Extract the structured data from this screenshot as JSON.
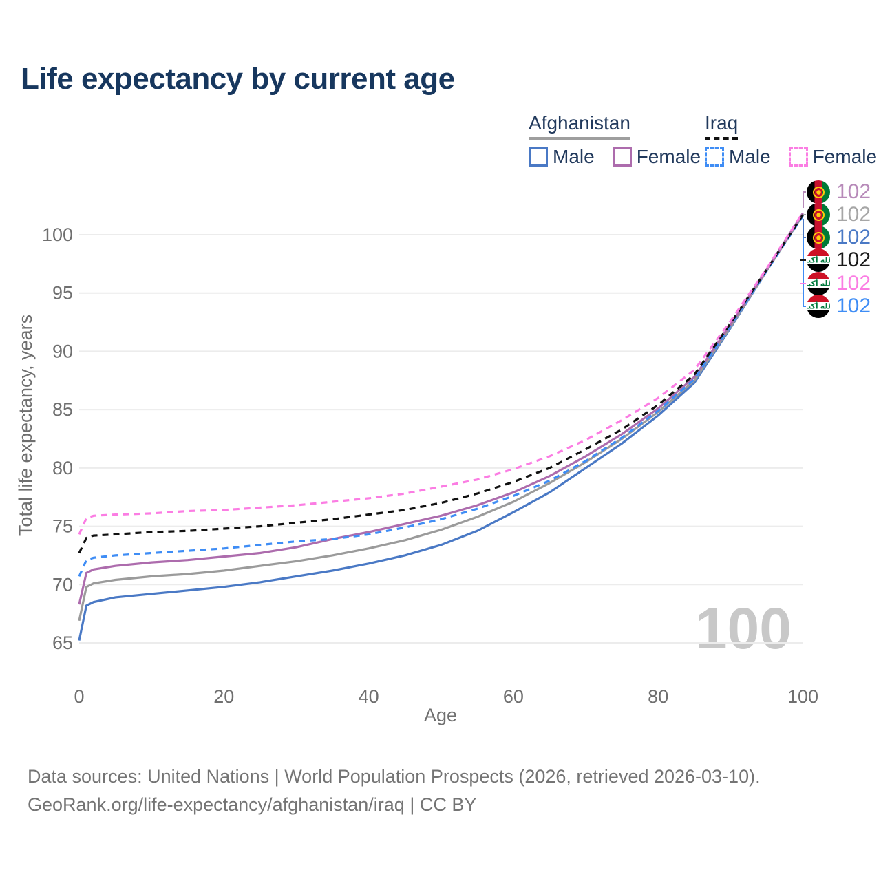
{
  "title": "Life expectancy by current age",
  "watermark": "100",
  "legend": {
    "groups": [
      {
        "label": "Afghanistan",
        "underline_style": "solid-gray",
        "items": [
          {
            "label": "Male",
            "swatch": "solid",
            "color": "#4a79c5"
          },
          {
            "label": "Female",
            "swatch": "solid",
            "color": "#ad6cad"
          }
        ]
      },
      {
        "label": "Iraq",
        "underline_style": "dashed-black",
        "items": [
          {
            "label": "Male",
            "swatch": "dashed",
            "color": "#3f8df5"
          },
          {
            "label": "Female",
            "swatch": "dashed",
            "color": "#fb7de3"
          }
        ]
      }
    ]
  },
  "y_axis": {
    "title": "Total life expectancy, years",
    "ticks": [
      65,
      70,
      75,
      80,
      85,
      90,
      95,
      100
    ]
  },
  "x_axis": {
    "title": "Age",
    "ticks": [
      0,
      20,
      40,
      60,
      80,
      100
    ]
  },
  "end_labels": [
    {
      "flag": "afghanistan",
      "series": "Afghanistan Female",
      "value": "102",
      "color": "#b78ab9"
    },
    {
      "flag": "afghanistan",
      "series": "Afghanistan Both sexes",
      "value": "102",
      "color": "#a6a6a6"
    },
    {
      "flag": "afghanistan",
      "series": "Afghanistan Male",
      "value": "102",
      "color": "#4a79c5"
    },
    {
      "flag": "iraq",
      "series": "Iraq Both sexes",
      "value": "102",
      "color": "#1a1a1a"
    },
    {
      "flag": "iraq",
      "series": "Iraq Female",
      "value": "102",
      "color": "#fb7de3"
    },
    {
      "flag": "iraq",
      "series": "Iraq Male",
      "value": "102",
      "color": "#3f8df5"
    }
  ],
  "flags": {
    "iraq_script": "الله أكبر"
  },
  "footer": {
    "line1": "Data sources: United Nations | World Population Prospects (2026, retrieved 2026-03-10).",
    "line2": "GeoRank.org/life-expectancy/afghanistan/iraq | CC BY"
  },
  "chart_data": {
    "type": "line",
    "title": "Life expectancy by current age",
    "xlabel": "Age",
    "ylabel": "Total life expectancy, years",
    "xlim": [
      0,
      100
    ],
    "ylim": [
      65,
      102
    ],
    "grid": "horizontal-only",
    "legend_position": "top-right",
    "x": [
      0,
      1,
      2,
      5,
      10,
      15,
      20,
      25,
      30,
      35,
      40,
      45,
      50,
      55,
      60,
      65,
      70,
      75,
      80,
      85,
      90,
      95,
      100
    ],
    "series": [
      {
        "name": "Afghanistan Male",
        "country": "Afghanistan",
        "sex": "Male",
        "color": "#4a79c5",
        "dash": false,
        "values": [
          65.2,
          68.2,
          68.5,
          68.9,
          69.2,
          69.5,
          69.8,
          70.2,
          70.7,
          71.2,
          71.8,
          72.5,
          73.4,
          74.6,
          76.2,
          77.9,
          80.0,
          82.1,
          84.5,
          87.3,
          92.0,
          96.9,
          101.7
        ]
      },
      {
        "name": "Afghanistan Both sexes",
        "country": "Afghanistan",
        "sex": "Both",
        "color": "#9b9b9b",
        "dash": false,
        "values": [
          66.9,
          69.8,
          70.1,
          70.4,
          70.7,
          70.9,
          71.2,
          71.6,
          72.0,
          72.5,
          73.1,
          73.8,
          74.7,
          75.8,
          77.1,
          78.7,
          80.5,
          82.5,
          84.8,
          87.5,
          92.1,
          96.9,
          101.75
        ]
      },
      {
        "name": "Afghanistan Female",
        "country": "Afghanistan",
        "sex": "Female",
        "color": "#ad6cad",
        "dash": false,
        "values": [
          68.3,
          71.0,
          71.3,
          71.6,
          71.9,
          72.1,
          72.4,
          72.7,
          73.2,
          73.9,
          74.5,
          75.2,
          75.9,
          76.8,
          77.9,
          79.3,
          81.0,
          82.9,
          85.1,
          87.8,
          92.3,
          97.0,
          101.85
        ]
      },
      {
        "name": "Iraq Male",
        "country": "Iraq",
        "sex": "Male",
        "color": "#3f8df5",
        "dash": true,
        "values": [
          70.7,
          72.1,
          72.3,
          72.5,
          72.7,
          72.9,
          73.1,
          73.4,
          73.7,
          73.9,
          74.3,
          74.9,
          75.6,
          76.5,
          77.6,
          78.9,
          80.6,
          82.6,
          84.9,
          87.6,
          92.2,
          96.9,
          101.6
        ]
      },
      {
        "name": "Iraq Both sexes",
        "country": "Iraq",
        "sex": "Both",
        "color": "#111111",
        "dash": true,
        "values": [
          72.7,
          74.0,
          74.2,
          74.3,
          74.5,
          74.6,
          74.8,
          75.0,
          75.3,
          75.6,
          76.0,
          76.4,
          77.0,
          77.8,
          78.8,
          80.0,
          81.6,
          83.3,
          85.4,
          88.0,
          92.4,
          97.0,
          101.7
        ]
      },
      {
        "name": "Iraq Female",
        "country": "Iraq",
        "sex": "Female",
        "color": "#fb7de3",
        "dash": true,
        "values": [
          74.3,
          75.7,
          75.9,
          76.0,
          76.1,
          76.3,
          76.4,
          76.6,
          76.8,
          77.1,
          77.4,
          77.8,
          78.4,
          79.0,
          79.9,
          81.0,
          82.4,
          84.1,
          86.0,
          88.4,
          92.6,
          97.1,
          101.9
        ]
      }
    ],
    "end_value_labels": [
      "102",
      "102",
      "102",
      "102",
      "102",
      "102"
    ]
  }
}
